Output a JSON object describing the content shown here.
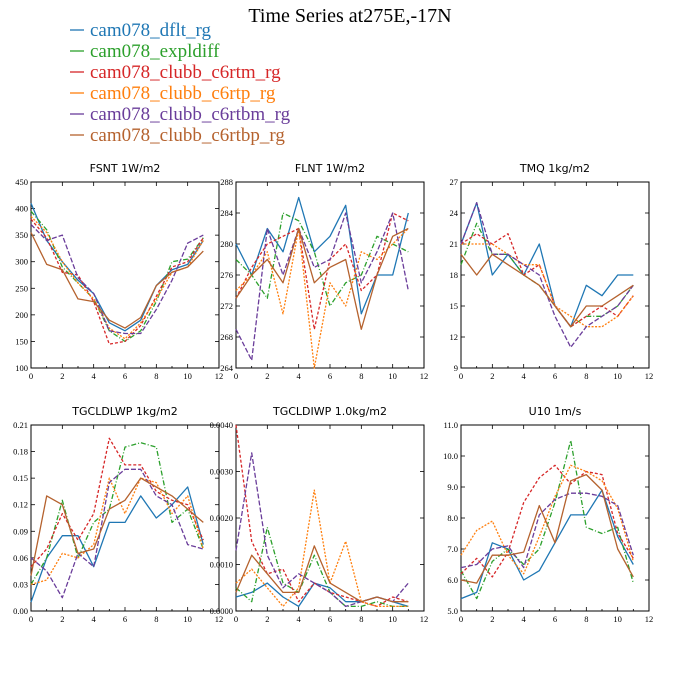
{
  "figure_title": "Time Series at275E,-17N",
  "colors": {
    "cam078_dflt_rg": "#1f77b4",
    "cam078_expldiff": "#2ca02c",
    "cam078_clubb_c6rtm_rg": "#d62728",
    "cam078_clubb_c6rtp_rg": "#ff7f0e",
    "cam078_clubb_c6rtbm_rg": "#6a3d9a",
    "cam078_clubb_c6rtbp_rg": "#b5622e"
  },
  "legend": [
    {
      "name": "cam078_dflt_rg",
      "dash": ""
    },
    {
      "name": "cam078_expldiff",
      "dash": "5,2,1,2"
    },
    {
      "name": "cam078_clubb_c6rtm_rg",
      "dash": "3,2"
    },
    {
      "name": "cam078_clubb_c6rtp_rg",
      "dash": "2,1.5"
    },
    {
      "name": "cam078_clubb_c6rtbm_rg",
      "dash": "5,2"
    },
    {
      "name": "cam078_clubb_c6rtbp_rg",
      "dash": ""
    }
  ],
  "chart_data": [
    {
      "type": "line",
      "title": "FSNT   1W/m2",
      "x": [
        0,
        1,
        2,
        3,
        4,
        5,
        6,
        7,
        8,
        9,
        10,
        11
      ],
      "xlim": [
        0,
        12
      ],
      "xticks": [
        "0",
        "2",
        "4",
        "6",
        "8",
        "10",
        "12"
      ],
      "ylim": [
        100,
        450
      ],
      "yticks": [
        "100",
        "150",
        "200",
        "250",
        "300",
        "350",
        "400",
        "450"
      ],
      "series": [
        {
          "name": "cam078_dflt_rg",
          "values": [
            410,
            340,
            300,
            265,
            240,
            185,
            170,
            190,
            255,
            285,
            295,
            340
          ]
        },
        {
          "name": "cam078_expldiff",
          "values": [
            395,
            360,
            290,
            260,
            230,
            170,
            150,
            170,
            225,
            300,
            305,
            345
          ]
        },
        {
          "name": "cam078_clubb_c6rtm_rg",
          "values": [
            380,
            345,
            280,
            275,
            225,
            145,
            150,
            180,
            235,
            290,
            300,
            345
          ]
        },
        {
          "name": "cam078_clubb_c6rtp_rg",
          "values": [
            385,
            355,
            300,
            260,
            230,
            175,
            155,
            185,
            230,
            280,
            290,
            340
          ]
        },
        {
          "name": "cam078_clubb_c6rtbm_rg",
          "values": [
            370,
            340,
            350,
            270,
            240,
            170,
            165,
            165,
            210,
            265,
            335,
            350
          ]
        },
        {
          "name": "cam078_clubb_c6rtbp_rg",
          "values": [
            355,
            295,
            285,
            230,
            225,
            190,
            175,
            195,
            255,
            280,
            290,
            320
          ]
        }
      ]
    },
    {
      "type": "line",
      "title": "FLNT   1W/m2",
      "x": [
        0,
        1,
        2,
        3,
        4,
        5,
        6,
        7,
        8,
        9,
        10,
        11
      ],
      "xlim": [
        0,
        12
      ],
      "xticks": [
        "0",
        "2",
        "4",
        "6",
        "8",
        "10",
        "12"
      ],
      "ylim": [
        264,
        288
      ],
      "yticks": [
        "264",
        "268",
        "272",
        "276",
        "280",
        "284",
        "288"
      ],
      "series": [
        {
          "name": "cam078_dflt_rg",
          "values": [
            280,
            276,
            282,
            279,
            286,
            279,
            281,
            285,
            271,
            276,
            276,
            284
          ]
        },
        {
          "name": "cam078_expldiff",
          "values": [
            278,
            276,
            273,
            284,
            283,
            279,
            272,
            275,
            276,
            281,
            280,
            279
          ]
        },
        {
          "name": "cam078_clubb_c6rtm_rg",
          "values": [
            273,
            277,
            280,
            281,
            282,
            269,
            278,
            280,
            274,
            276,
            284,
            283
          ]
        },
        {
          "name": "cam078_clubb_c6rtp_rg",
          "values": [
            274,
            276,
            279,
            271,
            282,
            264,
            275,
            272,
            279,
            278,
            280,
            282
          ]
        },
        {
          "name": "cam078_clubb_c6rtbm_rg",
          "values": [
            269,
            265,
            282,
            276,
            282,
            277,
            278,
            284,
            275,
            279,
            284,
            274
          ]
        },
        {
          "name": "cam078_clubb_c6rtbp_rg",
          "values": [
            273,
            276,
            278,
            275,
            282,
            275,
            277,
            278,
            269,
            276,
            281,
            282
          ]
        }
      ]
    },
    {
      "type": "line",
      "title": "TMQ   1kg/m2",
      "x": [
        0,
        1,
        2,
        3,
        4,
        5,
        6,
        7,
        8,
        9,
        10,
        11
      ],
      "xlim": [
        0,
        12
      ],
      "xticks": [
        "0",
        "2",
        "4",
        "6",
        "8",
        "10",
        "12"
      ],
      "ylim": [
        9,
        27
      ],
      "yticks": [
        "9",
        "12",
        "15",
        "18",
        "21",
        "24",
        "27"
      ],
      "series": [
        {
          "name": "cam078_dflt_rg",
          "values": [
            21,
            25,
            18,
            20,
            18,
            21,
            15,
            13,
            17,
            16,
            18,
            18
          ]
        },
        {
          "name": "cam078_expldiff",
          "values": [
            19,
            23,
            20,
            20,
            18,
            17,
            15,
            13,
            14,
            14,
            15,
            17
          ]
        },
        {
          "name": "cam078_clubb_c6rtm_rg",
          "values": [
            21,
            22,
            21,
            22,
            18,
            19,
            15,
            13,
            14,
            15,
            14,
            16
          ]
        },
        {
          "name": "cam078_clubb_c6rtp_rg",
          "values": [
            21,
            21,
            21,
            20,
            19,
            19,
            15,
            14,
            13,
            13,
            14,
            16
          ]
        },
        {
          "name": "cam078_clubb_c6rtbm_rg",
          "values": [
            21,
            25,
            20,
            20,
            19,
            18,
            14,
            11,
            13,
            14,
            15,
            17
          ]
        },
        {
          "name": "cam078_clubb_c6rtbp_rg",
          "values": [
            20,
            18,
            20,
            19,
            18,
            17,
            15,
            13,
            15,
            15,
            16,
            17
          ]
        }
      ]
    },
    {
      "type": "line",
      "title": "TGCLDLWP   1kg/m2",
      "x": [
        0,
        1,
        2,
        3,
        4,
        5,
        6,
        7,
        8,
        9,
        10,
        11
      ],
      "xlim": [
        0,
        12
      ],
      "xticks": [
        "0",
        "2",
        "4",
        "6",
        "8",
        "10",
        "12"
      ],
      "ylim": [
        0.0,
        0.21
      ],
      "yticks": [
        "0.00",
        "0.03",
        "0.06",
        "0.09",
        "0.12",
        "0.15",
        "0.18",
        "0.21"
      ],
      "series": [
        {
          "name": "cam078_dflt_rg",
          "values": [
            0.01,
            0.06,
            0.085,
            0.085,
            0.05,
            0.1,
            0.1,
            0.13,
            0.105,
            0.12,
            0.14,
            0.075
          ]
        },
        {
          "name": "cam078_expldiff",
          "values": [
            0.03,
            0.06,
            0.125,
            0.06,
            0.1,
            0.115,
            0.185,
            0.19,
            0.185,
            0.1,
            0.115,
            0.07
          ]
        },
        {
          "name": "cam078_clubb_c6rtm_rg",
          "values": [
            0.05,
            0.07,
            0.11,
            0.08,
            0.11,
            0.195,
            0.165,
            0.165,
            0.135,
            0.125,
            0.12,
            0.08
          ]
        },
        {
          "name": "cam078_clubb_c6rtp_rg",
          "values": [
            0.03,
            0.035,
            0.065,
            0.06,
            0.075,
            0.15,
            0.11,
            0.15,
            0.145,
            0.11,
            0.13,
            0.07
          ]
        },
        {
          "name": "cam078_clubb_c6rtbm_rg",
          "values": [
            0.06,
            0.045,
            0.015,
            0.065,
            0.05,
            0.145,
            0.16,
            0.16,
            0.13,
            0.12,
            0.075,
            0.07
          ]
        },
        {
          "name": "cam078_clubb_c6rtbp_rg",
          "values": [
            0.04,
            0.13,
            0.12,
            0.065,
            0.07,
            0.115,
            0.125,
            0.15,
            0.14,
            0.13,
            0.115,
            0.1
          ]
        }
      ]
    },
    {
      "type": "line",
      "title": "TGCLDIWP   1.0kg/m2",
      "x": [
        0,
        1,
        2,
        3,
        4,
        5,
        6,
        7,
        8,
        9,
        10,
        11
      ],
      "xlim": [
        0,
        12
      ],
      "xticks": [
        "0",
        "2",
        "4",
        "6",
        "8",
        "10",
        "12"
      ],
      "ylim": [
        0.0,
        0.004
      ],
      "yticks": [
        "0.0000",
        "0.0010",
        "0.0020",
        "0.0030",
        "0.0040"
      ],
      "series": [
        {
          "name": "cam078_dflt_rg",
          "values": [
            0.0003,
            0.0004,
            0.0006,
            0.0003,
            0.0001,
            0.0006,
            0.0005,
            0.0002,
            0.0002,
            0.0003,
            0.0002,
            0.0001
          ]
        },
        {
          "name": "cam078_expldiff",
          "values": [
            0.0005,
            0.0002,
            0.0018,
            0.0006,
            0.0004,
            0.0012,
            0.0004,
            0.0001,
            0.0001,
            0.0002,
            0.0001,
            0.0001
          ]
        },
        {
          "name": "cam078_clubb_c6rtm_rg",
          "values": [
            0.004,
            0.0015,
            0.0008,
            0.0009,
            0.0002,
            0.0006,
            0.0004,
            0.0003,
            0.0002,
            0.0001,
            0.0003,
            0.0002
          ]
        },
        {
          "name": "cam078_clubb_c6rtp_rg",
          "values": [
            0.0006,
            0.0009,
            0.0005,
            0.0001,
            0.0005,
            0.0026,
            0.0006,
            0.0015,
            0.0002,
            0.0001,
            0.0001,
            0.0001
          ]
        },
        {
          "name": "cam078_clubb_c6rtbm_rg",
          "values": [
            0.0013,
            0.0034,
            0.0012,
            0.0005,
            0.0008,
            0.0006,
            0.0004,
            0.0001,
            0.0002,
            0.0003,
            0.0002,
            0.0006
          ]
        },
        {
          "name": "cam078_clubb_c6rtbp_rg",
          "values": [
            0.0004,
            0.0012,
            0.0008,
            0.0004,
            0.0004,
            0.0014,
            0.0006,
            0.0004,
            0.0002,
            0.0003,
            0.0002,
            0.0002
          ]
        }
      ]
    },
    {
      "type": "line",
      "title": "U10   1m/s",
      "x": [
        0,
        1,
        2,
        3,
        4,
        5,
        6,
        7,
        8,
        9,
        10,
        11
      ],
      "xlim": [
        0,
        12
      ],
      "xticks": [
        "0",
        "2",
        "4",
        "6",
        "8",
        "10",
        "12"
      ],
      "ylim": [
        5.0,
        11.0
      ],
      "yticks": [
        "5.0",
        "6.0",
        "7.0",
        "8.0",
        "9.0",
        "10.0",
        "11.0"
      ],
      "series": [
        {
          "name": "cam078_dflt_rg",
          "values": [
            5.4,
            5.6,
            7.2,
            7.0,
            6.0,
            6.3,
            7.2,
            8.1,
            8.1,
            8.9,
            7.4,
            6.5
          ]
        },
        {
          "name": "cam078_expldiff",
          "values": [
            6.3,
            5.4,
            6.6,
            7.0,
            6.5,
            7.0,
            8.5,
            10.5,
            7.7,
            7.5,
            7.7,
            5.9
          ]
        },
        {
          "name": "cam078_clubb_c6rtm_rg",
          "values": [
            6.2,
            6.7,
            6.1,
            6.9,
            8.5,
            9.3,
            9.7,
            9.1,
            9.5,
            9.4,
            7.5,
            6.7
          ]
        },
        {
          "name": "cam078_clubb_c6rtp_rg",
          "values": [
            6.8,
            7.6,
            7.9,
            6.8,
            6.2,
            7.4,
            8.7,
            9.7,
            9.5,
            9.2,
            8.3,
            6.6
          ]
        },
        {
          "name": "cam078_clubb_c6rtbm_rg",
          "values": [
            6.4,
            6.5,
            7.0,
            7.1,
            6.4,
            8.1,
            8.6,
            8.8,
            8.8,
            8.7,
            8.4,
            6.8
          ]
        },
        {
          "name": "cam078_clubb_c6rtbp_rg",
          "values": [
            6.0,
            5.9,
            6.8,
            6.8,
            6.9,
            8.4,
            7.2,
            9.2,
            9.4,
            8.9,
            7.0,
            6.1
          ]
        }
      ]
    }
  ]
}
